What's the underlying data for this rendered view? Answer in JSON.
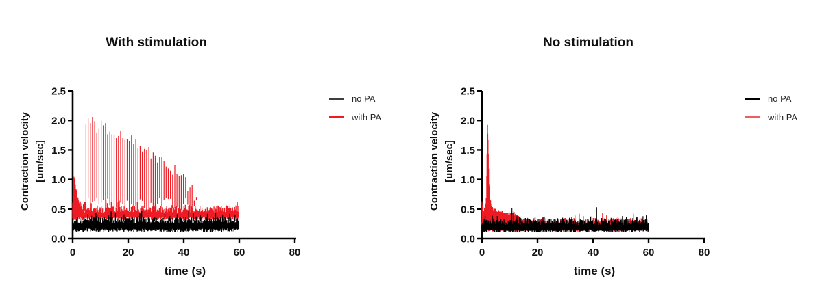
{
  "page": {
    "background": "#ffffff"
  },
  "chart_data": [
    {
      "type": "line",
      "title": "With stimulation",
      "xlabel": "time (s)",
      "ylabel_line1": "Contraction velocity",
      "ylabel_line2": "[um/sec]",
      "axis_color": "#000000",
      "xlim": [
        0,
        80
      ],
      "ylim": [
        0,
        2.5
      ],
      "xticks": [
        "0",
        "20",
        "40",
        "60",
        "80"
      ],
      "yticks": [
        "0.0",
        "0.5",
        "1.0",
        "1.5",
        "2.0",
        "2.5"
      ],
      "grid": false,
      "legend_position": "right-outside",
      "legend": [
        {
          "label": "no PA",
          "color": "#3f3f3f"
        },
        {
          "label": "with PA",
          "color": "#ed1c24"
        }
      ],
      "series": [
        {
          "name": "with PA",
          "color": "#ed1c24",
          "layers": [
            {
              "kind": "band",
              "t0": 0,
              "t1": 60,
              "lo": 0.34,
              "hi": 0.5,
              "jitter": 0.06,
              "step": 0.24,
              "seed": 11
            },
            {
              "kind": "burst",
              "interval": 0.78,
              "trough": 0.58,
              "trough_jitter": 0.12,
              "peak_jitter": 0.12,
              "seed": 12,
              "envelope": [
                [
                  4.8,
                  1.98
                ],
                [
                  6.2,
                  2.04
                ],
                [
                  7.6,
                  2.0
                ],
                [
                  9.0,
                  1.88
                ],
                [
                  10.6,
                  1.95
                ],
                [
                  12.2,
                  1.8
                ],
                [
                  13.8,
                  1.85
                ],
                [
                  15.5,
                  1.75
                ],
                [
                  17.2,
                  1.8
                ],
                [
                  19.0,
                  1.7
                ],
                [
                  21.0,
                  1.74
                ],
                [
                  23.0,
                  1.62
                ],
                [
                  25.0,
                  1.58
                ],
                [
                  27.0,
                  1.5
                ],
                [
                  29.0,
                  1.45
                ],
                [
                  31.0,
                  1.38
                ],
                [
                  33.0,
                  1.28
                ],
                [
                  35.0,
                  1.25
                ],
                [
                  37.0,
                  1.12
                ],
                [
                  39.0,
                  1.02
                ],
                [
                  41.0,
                  0.93
                ],
                [
                  43.0,
                  0.82
                ],
                [
                  44.6,
                  0.68
                ]
              ]
            },
            {
              "kind": "burst",
              "interval": 0.12,
              "trough": 0.44,
              "trough_jitter": 0.07,
              "peak_jitter": 0.05,
              "seed": 13,
              "envelope": [
                [
                  0,
                  0.6
                ],
                [
                  0.3,
                  1.1
                ],
                [
                  0.6,
                  1.0
                ],
                [
                  1.0,
                  0.9
                ],
                [
                  1.5,
                  0.78
                ],
                [
                  2.0,
                  0.68
                ],
                [
                  2.8,
                  0.58
                ],
                [
                  3.6,
                  0.52
                ],
                [
                  4.6,
                  0.62
                ]
              ]
            }
          ]
        },
        {
          "name": "no PA",
          "color": "#000000",
          "layers": [
            {
              "kind": "band",
              "t0": 0,
              "t1": 60,
              "lo": 0.14,
              "hi": 0.31,
              "jitter": 0.06,
              "step": 0.22,
              "seed": 14
            },
            {
              "kind": "spikes",
              "base": 0.29,
              "points": [
                [
                  4,
                  0.37
                ],
                [
                  8.5,
                  0.38
                ],
                [
                  13,
                  0.4
                ],
                [
                  18.5,
                  0.41
                ],
                [
                  24,
                  0.38
                ],
                [
                  29.5,
                  0.37
                ],
                [
                  35,
                  0.38
                ],
                [
                  40,
                  0.36
                ],
                [
                  43.5,
                  0.43
                ],
                [
                  46,
                  0.4
                ],
                [
                  48.5,
                  0.42
                ],
                [
                  51.5,
                  0.44
                ],
                [
                  54,
                  0.4
                ],
                [
                  56.5,
                  0.42
                ],
                [
                  58.5,
                  0.4
                ]
              ]
            }
          ]
        }
      ]
    },
    {
      "type": "line",
      "title": "No stimulation",
      "xlabel": "time (s)",
      "ylabel_line1": "Contraction velocity",
      "ylabel_line2": "[um/sec]",
      "axis_color": "#000000",
      "xlim": [
        0,
        80
      ],
      "ylim": [
        0,
        2.5
      ],
      "xticks": [
        "0",
        "20",
        "40",
        "60",
        "80"
      ],
      "yticks": [
        "0.0",
        "0.5",
        "1.0",
        "1.5",
        "2.0",
        "2.5"
      ],
      "grid": false,
      "legend_position": "right-outside",
      "legend": [
        {
          "label": "no PA",
          "color": "#000000"
        },
        {
          "label": "with PA",
          "color": "#ef5e5e"
        }
      ],
      "series": [
        {
          "name": "with PA",
          "color": "#ed1c24",
          "layers": [
            {
              "kind": "band",
              "t0": 0,
              "t1": 60,
              "lo": 0.14,
              "hi": 0.3,
              "jitter": 0.05,
              "step": 0.24,
              "seed": 21
            },
            {
              "kind": "burst",
              "interval": 0.1,
              "trough": 0.24,
              "trough_jitter": 0.05,
              "peak_jitter": 0.04,
              "seed": 22,
              "envelope": [
                [
                  0,
                  0.62
                ],
                [
                  0.5,
                  0.48
                ],
                [
                  1.1,
                  0.5
                ],
                [
                  1.6,
                  0.7
                ],
                [
                  1.95,
                  2.04
                ],
                [
                  2.25,
                  1.58
                ],
                [
                  2.5,
                  0.95
                ],
                [
                  2.9,
                  0.65
                ],
                [
                  3.5,
                  0.55
                ],
                [
                  4.5,
                  0.47
                ],
                [
                  6.0,
                  0.44
                ],
                [
                  8.0,
                  0.43
                ],
                [
                  10.0,
                  0.4
                ],
                [
                  11.5,
                  0.43
                ],
                [
                  13.0,
                  0.36
                ],
                [
                  14.5,
                  0.31
                ]
              ]
            }
          ]
        },
        {
          "name": "no PA",
          "color": "#000000",
          "layers": [
            {
              "kind": "band",
              "t0": 0,
              "t1": 60,
              "lo": 0.13,
              "hi": 0.28,
              "jitter": 0.05,
              "step": 0.22,
              "seed": 23
            },
            {
              "kind": "spikes",
              "base": 0.26,
              "points": [
                [
                  10.8,
                  0.52
                ],
                [
                  11.4,
                  0.44
                ],
                [
                  12.6,
                  0.38
                ],
                [
                  14,
                  0.35
                ],
                [
                  20,
                  0.33
                ],
                [
                  26,
                  0.33
                ],
                [
                  31.5,
                  0.35
                ],
                [
                  33.5,
                  0.39
                ],
                [
                  35,
                  0.42
                ],
                [
                  36.5,
                  0.38
                ],
                [
                  41.3,
                  0.53
                ],
                [
                  44,
                  0.34
                ],
                [
                  46.5,
                  0.35
                ],
                [
                  49,
                  0.36
                ],
                [
                  52,
                  0.37
                ],
                [
                  54.5,
                  0.42
                ],
                [
                  56,
                  0.36
                ],
                [
                  58,
                  0.38
                ]
              ]
            }
          ]
        }
      ]
    }
  ]
}
